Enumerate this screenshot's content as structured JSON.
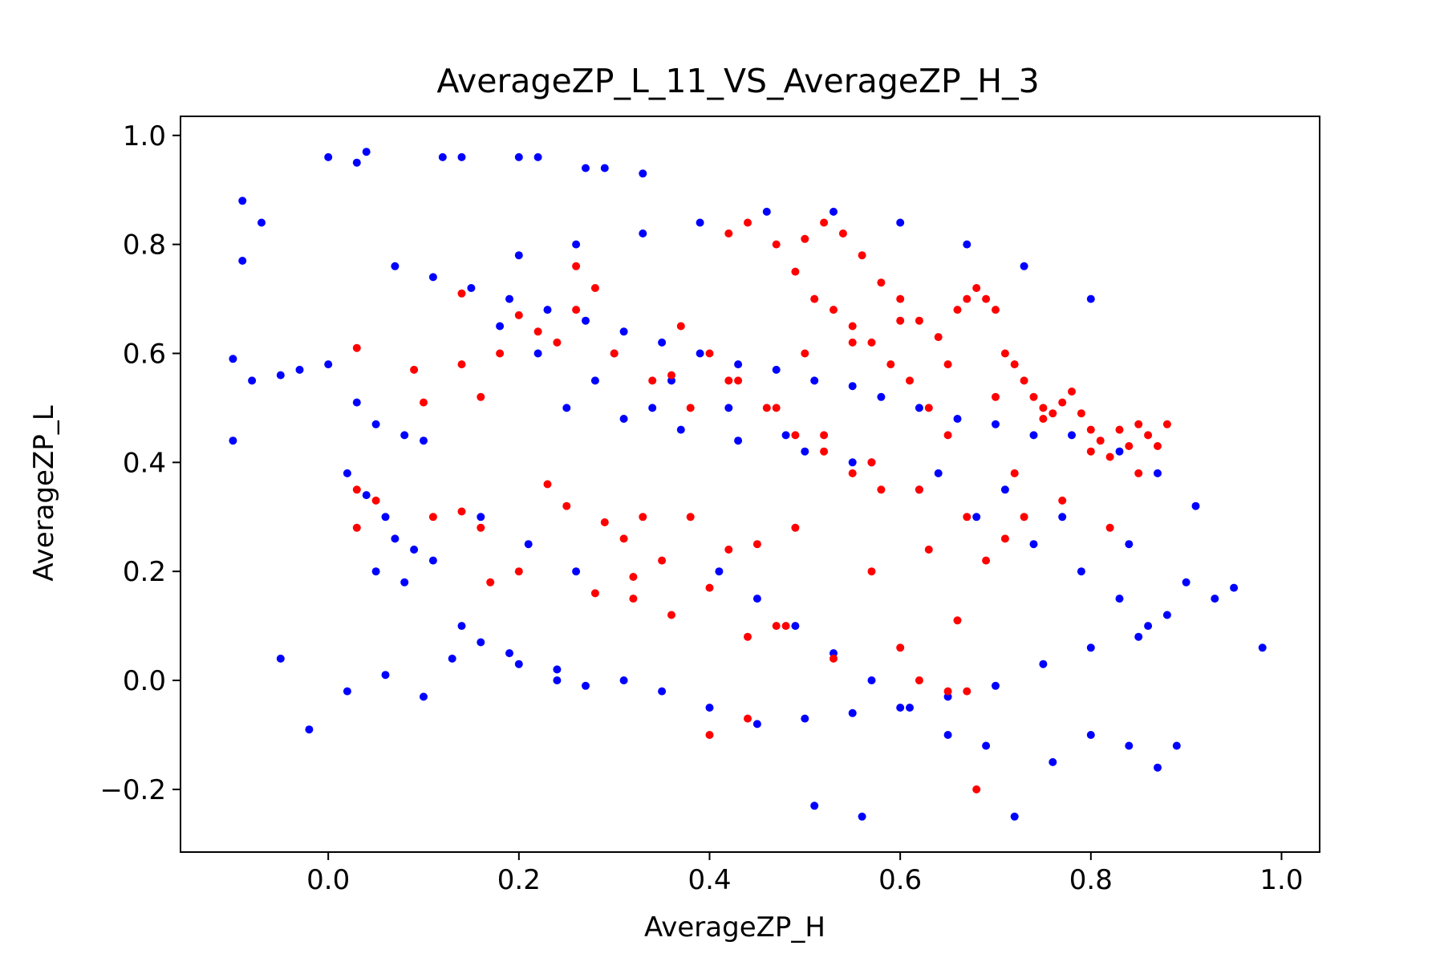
{
  "chart_data": {
    "type": "scatter",
    "title": "AverageZP_L_11_VS_AverageZP_H_3",
    "xlabel": "AverageZP_H",
    "ylabel": "AverageZP_L",
    "xlim": [
      -0.155,
      1.04
    ],
    "ylim": [
      -0.315,
      1.035
    ],
    "xticks": [
      0.0,
      0.2,
      0.4,
      0.6,
      0.8,
      1.0
    ],
    "xtick_labels": [
      "0.0",
      "0.2",
      "0.4",
      "0.6",
      "0.8",
      "1.0"
    ],
    "yticks": [
      -0.2,
      0.0,
      0.2,
      0.4,
      0.6,
      0.8,
      1.0
    ],
    "ytick_labels": [
      "−0.2",
      "0.0",
      "0.2",
      "0.4",
      "0.6",
      "0.8",
      "1.0"
    ],
    "grid": false,
    "series": [
      {
        "color": "#0000ff",
        "x": [
          0.04,
          0.0,
          0.03,
          0.12,
          0.14,
          0.2,
          0.22,
          0.27,
          0.29,
          0.33,
          -0.09,
          -0.07,
          -0.09,
          -0.1,
          -0.1,
          -0.08,
          -0.05,
          -0.03,
          0.0,
          0.03,
          0.05,
          0.08,
          0.1,
          0.02,
          0.04,
          0.06,
          0.07,
          0.09,
          0.11,
          0.05,
          0.08,
          -0.05,
          -0.02,
          0.02,
          0.06,
          0.1,
          0.13,
          0.16,
          0.2,
          0.24,
          0.27,
          0.31,
          0.35,
          0.4,
          0.45,
          0.5,
          0.55,
          0.6,
          0.65,
          0.7,
          0.75,
          0.8,
          0.85,
          0.88,
          0.9,
          0.93,
          0.95,
          0.98,
          0.91,
          0.87,
          0.83,
          0.78,
          0.74,
          0.7,
          0.66,
          0.62,
          0.58,
          0.55,
          0.51,
          0.47,
          0.43,
          0.39,
          0.35,
          0.31,
          0.27,
          0.23,
          0.19,
          0.15,
          0.11,
          0.07,
          0.2,
          0.26,
          0.33,
          0.39,
          0.46,
          0.53,
          0.6,
          0.67,
          0.73,
          0.8,
          0.25,
          0.31,
          0.37,
          0.43,
          0.5,
          0.57,
          0.64,
          0.71,
          0.77,
          0.84,
          0.41,
          0.45,
          0.49,
          0.53,
          0.57,
          0.61,
          0.65,
          0.69,
          0.51,
          0.56,
          0.72,
          0.76,
          0.8,
          0.84,
          0.87,
          0.89,
          0.3,
          0.36,
          0.42,
          0.48,
          0.55,
          0.62,
          0.68,
          0.74,
          0.79,
          0.83,
          0.86,
          0.18,
          0.22,
          0.28,
          0.34,
          0.16,
          0.21,
          0.26,
          0.14,
          0.19,
          0.24
        ],
        "y": [
          0.97,
          0.96,
          0.95,
          0.96,
          0.96,
          0.96,
          0.96,
          0.94,
          0.94,
          0.93,
          0.88,
          0.84,
          0.77,
          0.59,
          0.44,
          0.55,
          0.56,
          0.57,
          0.58,
          0.51,
          0.47,
          0.45,
          0.44,
          0.38,
          0.34,
          0.3,
          0.26,
          0.24,
          0.22,
          0.2,
          0.18,
          0.04,
          -0.09,
          -0.02,
          0.01,
          -0.03,
          0.04,
          0.07,
          0.03,
          0.02,
          -0.01,
          0.0,
          -0.02,
          -0.05,
          -0.08,
          -0.07,
          -0.06,
          -0.05,
          -0.03,
          -0.01,
          0.03,
          0.06,
          0.08,
          0.12,
          0.18,
          0.15,
          0.17,
          0.06,
          0.32,
          0.38,
          0.42,
          0.45,
          0.45,
          0.47,
          0.48,
          0.5,
          0.52,
          0.54,
          0.55,
          0.57,
          0.58,
          0.6,
          0.62,
          0.64,
          0.66,
          0.68,
          0.7,
          0.72,
          0.74,
          0.76,
          0.78,
          0.8,
          0.82,
          0.84,
          0.86,
          0.86,
          0.84,
          0.8,
          0.76,
          0.7,
          0.5,
          0.48,
          0.46,
          0.44,
          0.42,
          0.4,
          0.38,
          0.35,
          0.3,
          0.25,
          0.2,
          0.15,
          0.1,
          0.05,
          0.0,
          -0.05,
          -0.1,
          -0.12,
          -0.23,
          -0.25,
          -0.25,
          -0.15,
          -0.1,
          -0.12,
          -0.16,
          -0.12,
          0.6,
          0.55,
          0.5,
          0.45,
          0.4,
          0.35,
          0.3,
          0.25,
          0.2,
          0.15,
          0.1,
          0.65,
          0.6,
          0.55,
          0.5,
          0.3,
          0.25,
          0.2,
          0.1,
          0.05,
          0.0
        ]
      },
      {
        "color": "#ff0000",
        "x": [
          0.03,
          0.03,
          0.03,
          0.05,
          0.09,
          0.1,
          0.14,
          0.16,
          0.11,
          0.14,
          0.16,
          0.17,
          0.2,
          0.23,
          0.25,
          0.26,
          0.29,
          0.31,
          0.32,
          0.33,
          0.35,
          0.36,
          0.38,
          0.4,
          0.42,
          0.44,
          0.45,
          0.47,
          0.49,
          0.5,
          0.52,
          0.54,
          0.56,
          0.58,
          0.6,
          0.62,
          0.64,
          0.66,
          0.67,
          0.68,
          0.69,
          0.7,
          0.71,
          0.72,
          0.73,
          0.74,
          0.75,
          0.76,
          0.77,
          0.78,
          0.79,
          0.8,
          0.81,
          0.82,
          0.83,
          0.84,
          0.85,
          0.86,
          0.87,
          0.88,
          0.42,
          0.44,
          0.47,
          0.49,
          0.51,
          0.53,
          0.55,
          0.57,
          0.59,
          0.61,
          0.63,
          0.65,
          0.42,
          0.47,
          0.52,
          0.57,
          0.62,
          0.67,
          0.72,
          0.77,
          0.82,
          0.37,
          0.4,
          0.43,
          0.46,
          0.49,
          0.52,
          0.55,
          0.58,
          0.3,
          0.34,
          0.38,
          0.26,
          0.28,
          0.24,
          0.62,
          0.65,
          0.67,
          0.53,
          0.48,
          0.6,
          0.44,
          0.4,
          0.36,
          0.32,
          0.28,
          0.22,
          0.2,
          0.18,
          0.14,
          0.5,
          0.55,
          0.6,
          0.65,
          0.7,
          0.75,
          0.8,
          0.85,
          0.57,
          0.63,
          0.69,
          0.71,
          0.73,
          0.66,
          0.68
        ],
        "y": [
          0.61,
          0.35,
          0.28,
          0.33,
          0.57,
          0.51,
          0.71,
          0.52,
          0.3,
          0.31,
          0.28,
          0.18,
          0.2,
          0.36,
          0.32,
          0.76,
          0.29,
          0.26,
          0.19,
          0.3,
          0.22,
          0.56,
          0.3,
          0.17,
          0.24,
          0.08,
          0.25,
          0.1,
          0.28,
          0.81,
          0.84,
          0.82,
          0.78,
          0.73,
          0.7,
          0.66,
          0.63,
          0.68,
          0.7,
          0.72,
          0.7,
          0.68,
          0.6,
          0.58,
          0.55,
          0.52,
          0.5,
          0.49,
          0.51,
          0.53,
          0.49,
          0.46,
          0.44,
          0.41,
          0.46,
          0.43,
          0.47,
          0.45,
          0.43,
          0.47,
          0.82,
          0.84,
          0.8,
          0.75,
          0.7,
          0.68,
          0.65,
          0.62,
          0.58,
          0.55,
          0.5,
          0.45,
          0.55,
          0.5,
          0.45,
          0.4,
          0.35,
          0.3,
          0.38,
          0.33,
          0.28,
          0.65,
          0.6,
          0.55,
          0.5,
          0.45,
          0.42,
          0.38,
          0.35,
          0.6,
          0.55,
          0.5,
          0.68,
          0.72,
          0.62,
          0.0,
          -0.02,
          -0.02,
          0.04,
          0.1,
          0.06,
          -0.07,
          -0.1,
          0.12,
          0.15,
          0.16,
          0.64,
          0.67,
          0.6,
          0.58,
          0.6,
          0.62,
          0.66,
          0.58,
          0.52,
          0.48,
          0.42,
          0.38,
          0.2,
          0.24,
          0.22,
          0.26,
          0.3,
          0.11,
          -0.2
        ]
      }
    ]
  }
}
